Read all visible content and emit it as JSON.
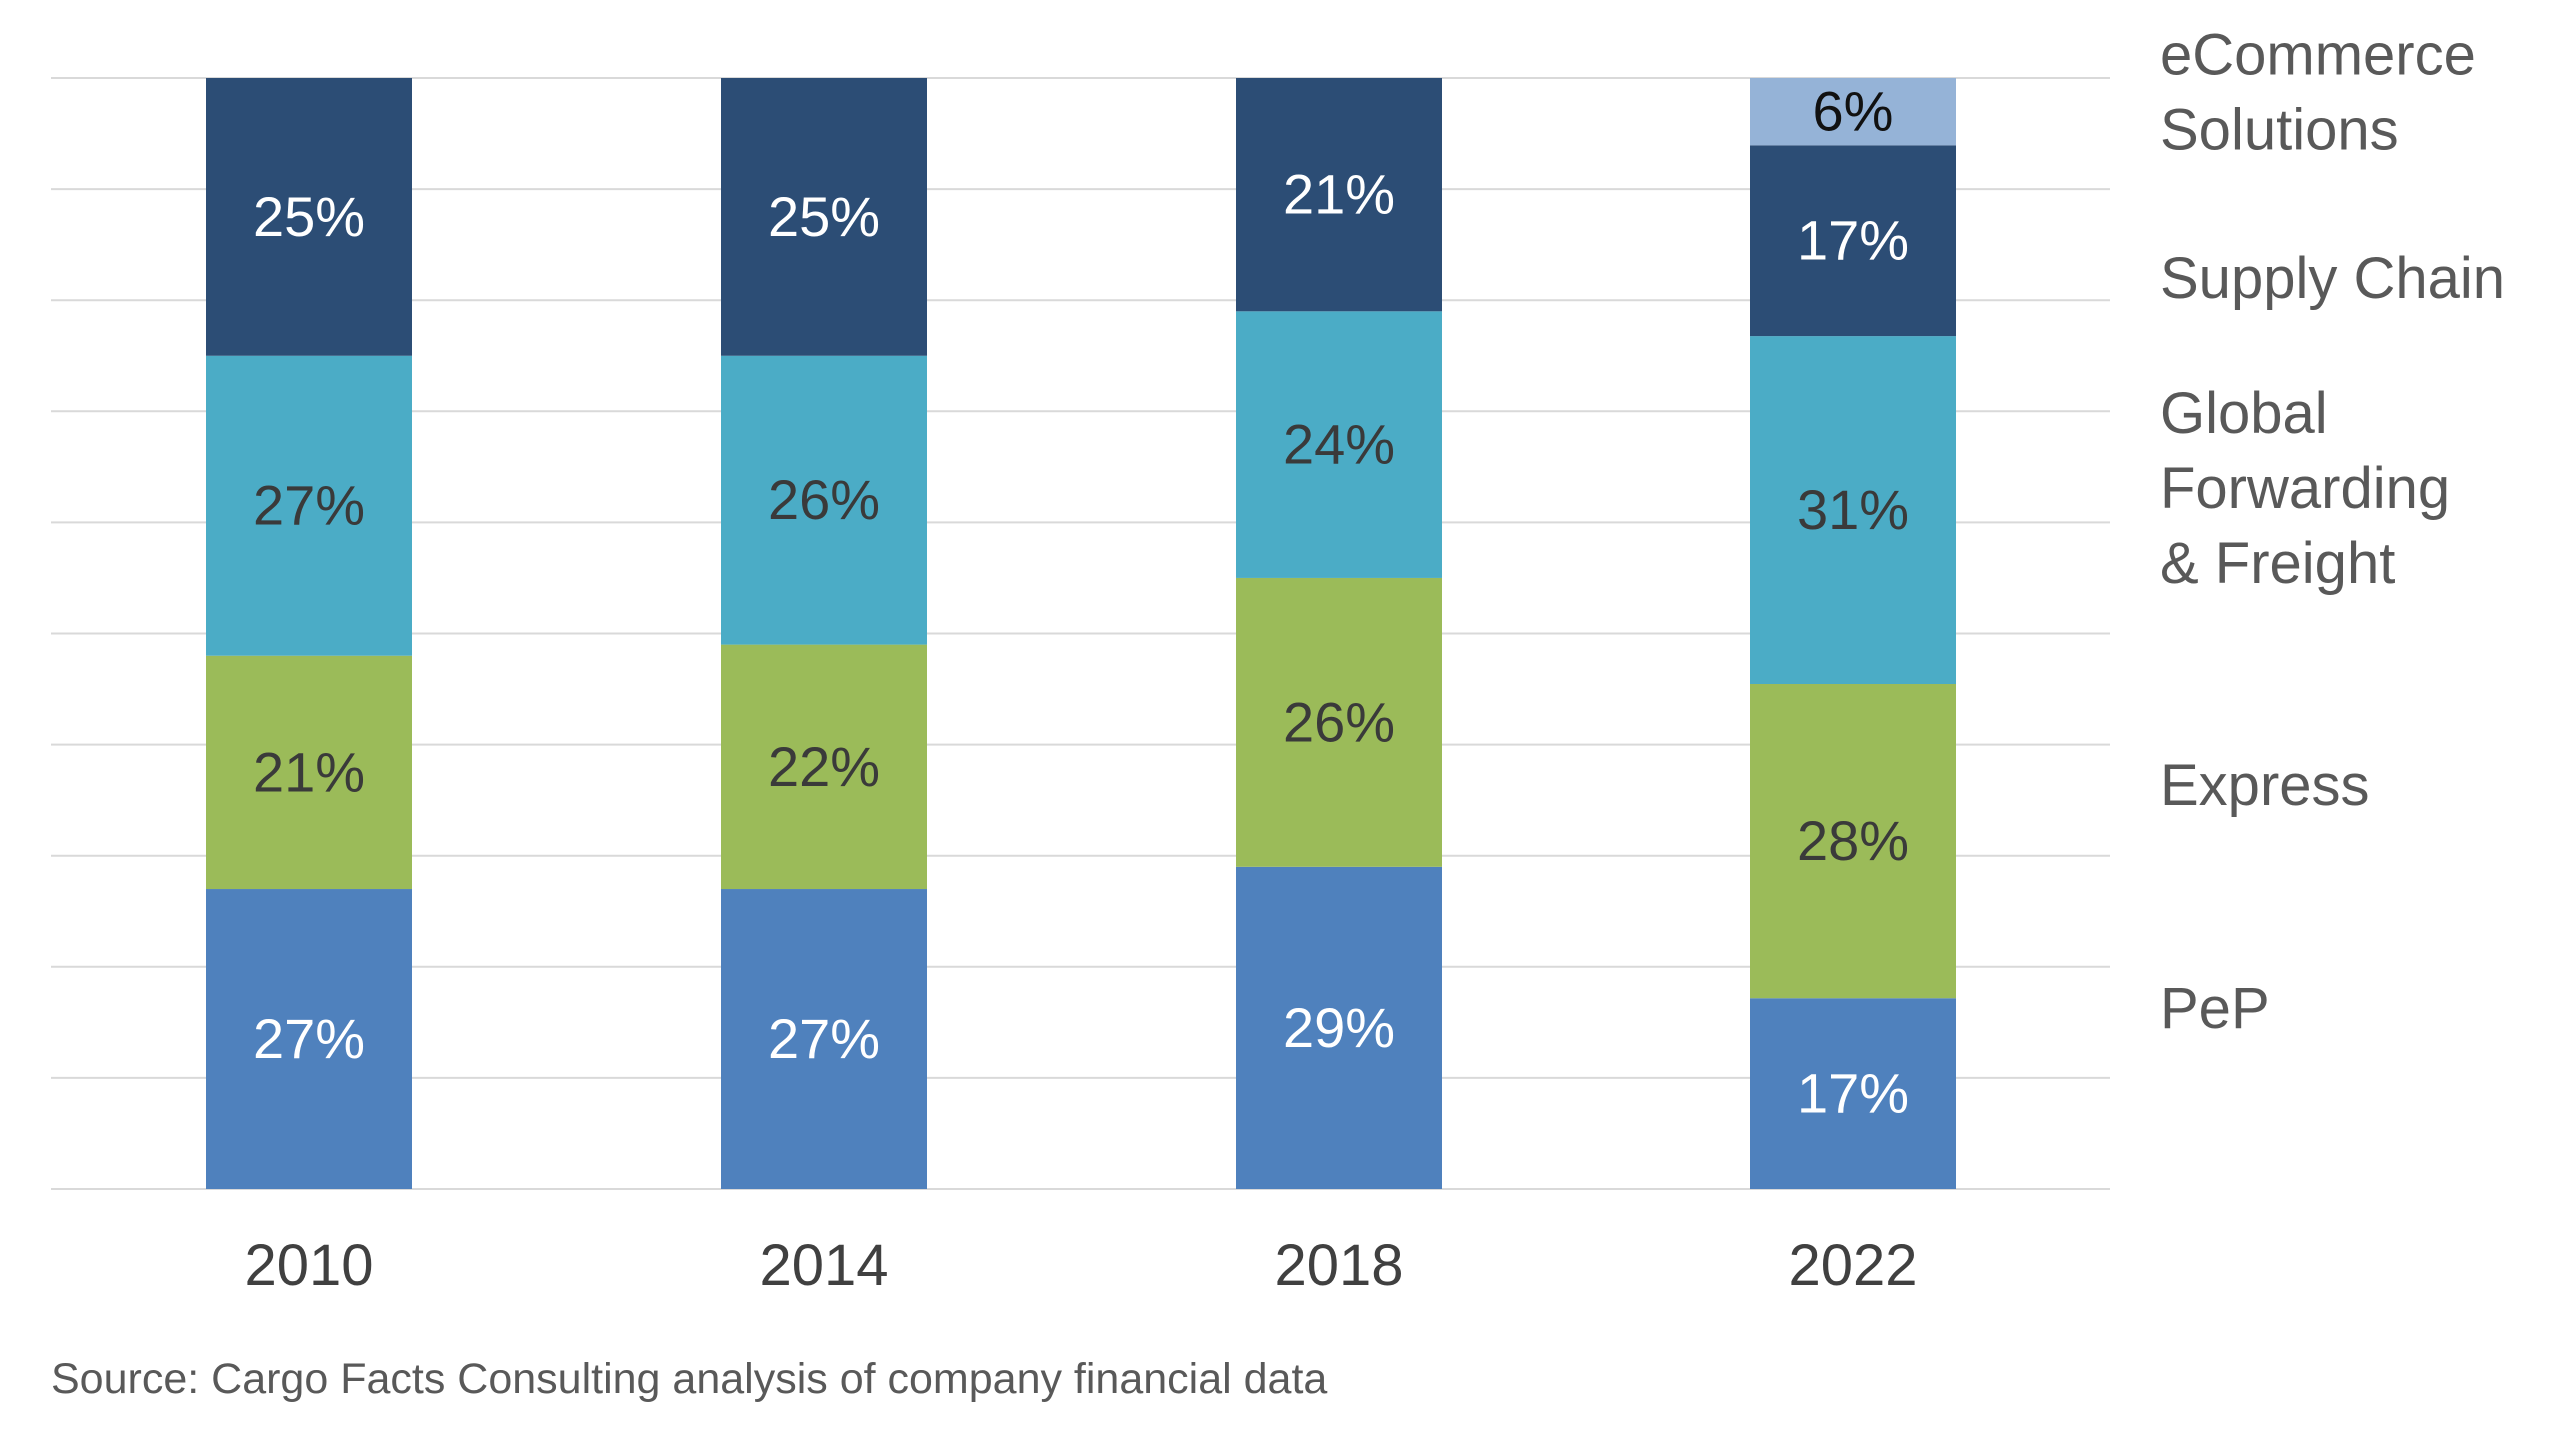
{
  "chart_data": {
    "type": "bar",
    "stacked": true,
    "percent_stacked": true,
    "categories": [
      "2010",
      "2014",
      "2018",
      "2022"
    ],
    "ylim": [
      0,
      100
    ],
    "grid": true,
    "legend_placement": "right",
    "series": [
      {
        "name": "PeP",
        "color": "#4F81BD",
        "label_color": "#ffffff",
        "values": [
          27,
          27,
          29,
          17
        ]
      },
      {
        "name": "Express",
        "color": "#9BBB59",
        "label_color": "#3a3a3a",
        "values": [
          21,
          22,
          26,
          28
        ]
      },
      {
        "name": "Global Forwarding & Freight",
        "color": "#4BACC6",
        "label_color": "#3a3a3a",
        "values": [
          27,
          26,
          24,
          31
        ]
      },
      {
        "name": "Supply Chain",
        "color": "#2C4D75",
        "label_color": "#ffffff",
        "values": [
          25,
          25,
          21,
          17
        ]
      },
      {
        "name": "eCommerce Solutions",
        "color": "#95B3D7",
        "label_color": "#111111",
        "values": [
          0,
          0,
          0,
          6
        ]
      }
    ],
    "data_labels": [
      [
        "27%",
        "27%",
        "29%",
        "17%"
      ],
      [
        "21%",
        "22%",
        "26%",
        "28%"
      ],
      [
        "27%",
        "26%",
        "24%",
        "31%"
      ],
      [
        "25%",
        "25%",
        "21%",
        "17%"
      ],
      [
        "",
        "",
        "",
        "6%"
      ]
    ],
    "legend_labels": [
      [
        "PeP"
      ],
      [
        "Express"
      ],
      [
        "Global",
        "Forwarding",
        "& Freight"
      ],
      [
        "Supply Chain"
      ],
      [
        "eCommerce",
        "Solutions"
      ]
    ],
    "source": "Source: Cargo Facts Consulting analysis of company financial data"
  }
}
